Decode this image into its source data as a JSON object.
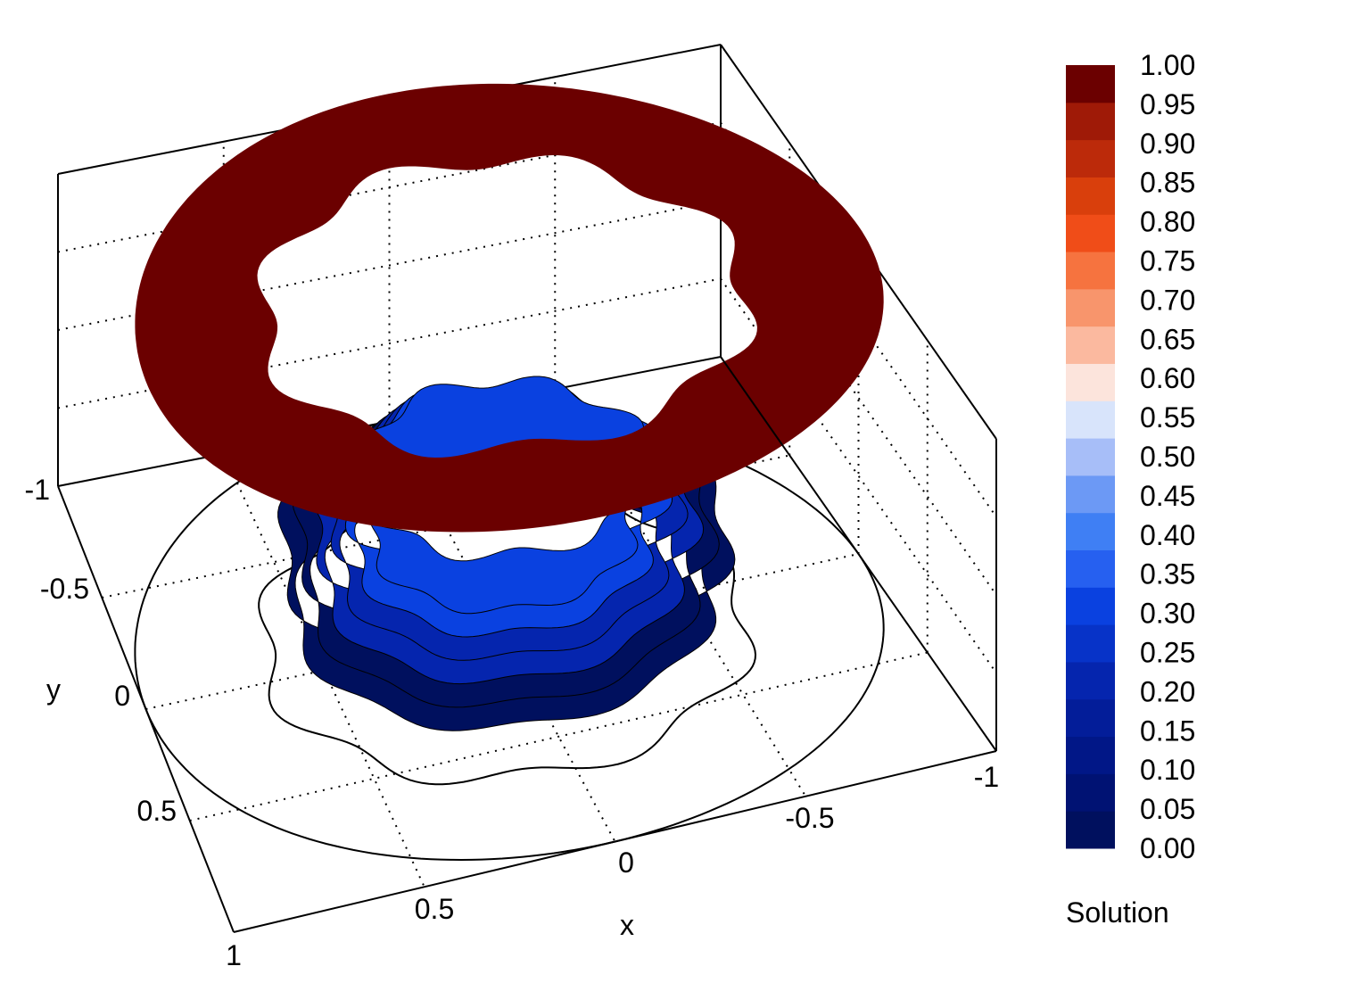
{
  "chart_data": {
    "type": "surface3d",
    "x_axis": {
      "label": "x",
      "ticks": [
        "1",
        "0.5",
        "0",
        "-0.5",
        "-1"
      ],
      "range": [
        1,
        -1
      ]
    },
    "y_axis": {
      "label": "y",
      "ticks": [
        "-1",
        "-0.5",
        "0",
        "0.5"
      ],
      "range": [
        -1,
        1
      ]
    },
    "grid": true,
    "colorbar": {
      "title": "Solution",
      "position": "right",
      "ticks": [
        "0.00",
        "0.05",
        "0.10",
        "0.15",
        "0.20",
        "0.25",
        "0.30",
        "0.35",
        "0.40",
        "0.45",
        "0.50",
        "0.55",
        "0.60",
        "0.65",
        "0.70",
        "0.75",
        "0.80",
        "0.85",
        "0.90",
        "0.95",
        "1.00"
      ],
      "band_colors": [
        "#00105e",
        "#001273",
        "#011787",
        "#031d99",
        "#0525ae",
        "#0733c8",
        "#0a41e0",
        "#2660f0",
        "#3f7ff4",
        "#6c99f5",
        "#a7bef8",
        "#d8e4fb",
        "#fce4dc",
        "#fbb99f",
        "#f8956c",
        "#f6733f",
        "#f04d18",
        "#d93f0c",
        "#bc2a0a",
        "#9f1a07",
        "#6b0000"
      ]
    },
    "surfaces": [
      {
        "name": "outer-ring",
        "value": 1.0,
        "color": "#6b0000",
        "r_inner": 0.65,
        "r_outer": 1.0
      },
      {
        "name": "inner-ring",
        "value_range": [
          0.0,
          0.3
        ],
        "colors": [
          "#00105e",
          "#0525ae",
          "#0a41e0"
        ],
        "r_inner": 0.35,
        "r_outer": 0.6
      }
    ],
    "contours": [
      {
        "r": 1.0,
        "wavy": false
      },
      {
        "r": 0.65,
        "wavy": true
      }
    ]
  }
}
